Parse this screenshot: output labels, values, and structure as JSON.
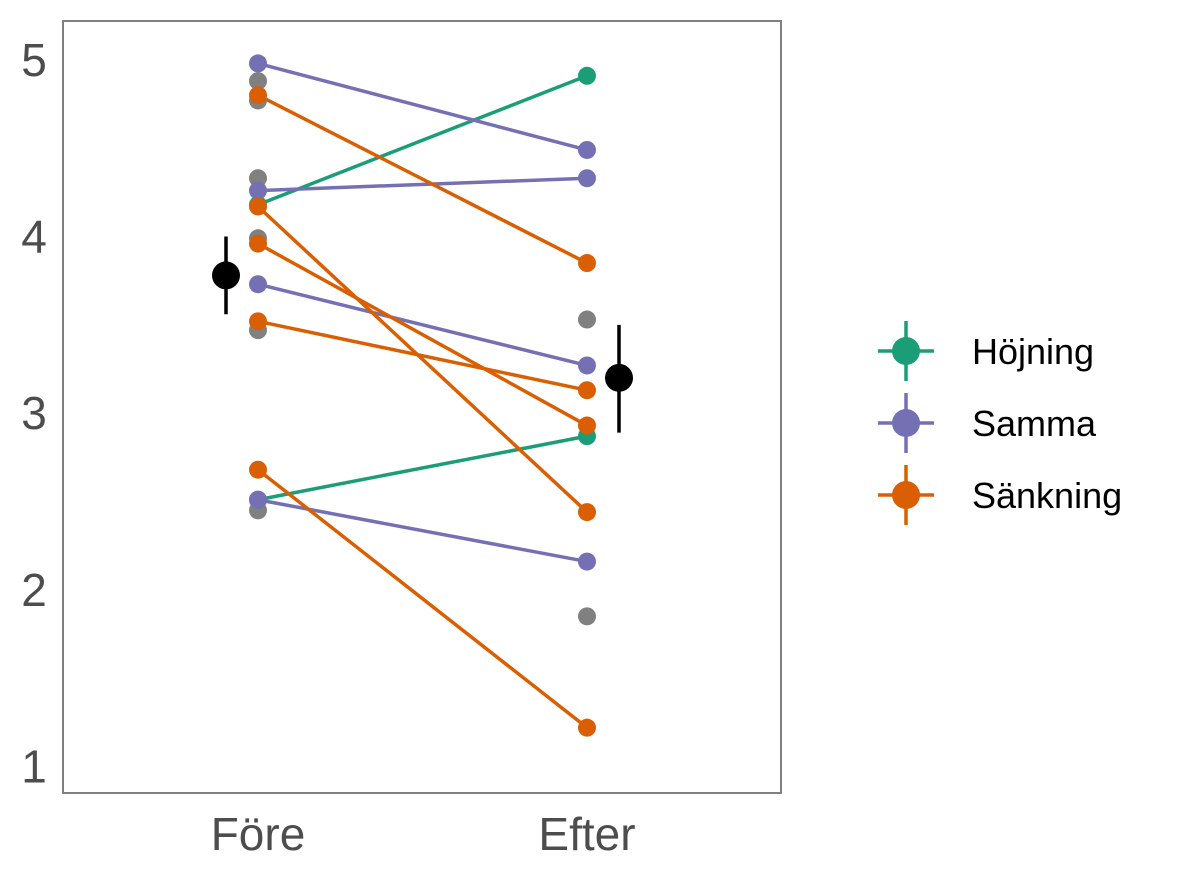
{
  "chart_data": {
    "type": "line",
    "categories": [
      "Före",
      "Efter"
    ],
    "ylim": [
      0.85,
      5.22
    ],
    "y_ticks": [
      1,
      2,
      3,
      4,
      5
    ],
    "grid": false,
    "legend_position": "right",
    "colors": {
      "Höjning": "#1b9e77",
      "Samma": "#7570b3",
      "Sänkning": "#d95f02",
      "unpaired": "#808080",
      "mean": "#000000",
      "frame": "#808080"
    },
    "legend": [
      {
        "name": "Höjning",
        "color": "#1b9e77"
      },
      {
        "name": "Samma",
        "color": "#7570b3"
      },
      {
        "name": "Sänkning",
        "color": "#d95f02"
      }
    ],
    "pairs": [
      {
        "group": "Höjning",
        "before": 4.18,
        "after": 4.91
      },
      {
        "group": "Höjning",
        "before": 2.51,
        "after": 2.87
      },
      {
        "group": "Samma",
        "before": 4.98,
        "after": 4.49
      },
      {
        "group": "Samma",
        "before": 4.26,
        "after": 4.33
      },
      {
        "group": "Samma",
        "before": 3.73,
        "after": 3.27
      },
      {
        "group": "Samma",
        "before": 2.51,
        "after": 2.16
      },
      {
        "group": "Sänkning",
        "before": 4.8,
        "after": 3.85
      },
      {
        "group": "Sänkning",
        "before": 4.17,
        "after": 2.44
      },
      {
        "group": "Sänkning",
        "before": 3.96,
        "after": 2.93
      },
      {
        "group": "Sänkning",
        "before": 3.52,
        "after": 3.13
      },
      {
        "group": "Sänkning",
        "before": 2.68,
        "after": 1.22
      }
    ],
    "unpaired_points": [
      {
        "category": "Före",
        "value": 4.88
      },
      {
        "category": "Före",
        "value": 4.77
      },
      {
        "category": "Före",
        "value": 4.33
      },
      {
        "category": "Före",
        "value": 3.99
      },
      {
        "category": "Före",
        "value": 3.47
      },
      {
        "category": "Före",
        "value": 2.45
      },
      {
        "category": "Efter",
        "value": 3.53
      },
      {
        "category": "Efter",
        "value": 1.85
      }
    ],
    "means": [
      {
        "category": "Före",
        "mean": 3.78,
        "lower": 3.56,
        "upper": 4.0
      },
      {
        "category": "Efter",
        "mean": 3.2,
        "lower": 2.89,
        "upper": 3.5
      }
    ]
  }
}
